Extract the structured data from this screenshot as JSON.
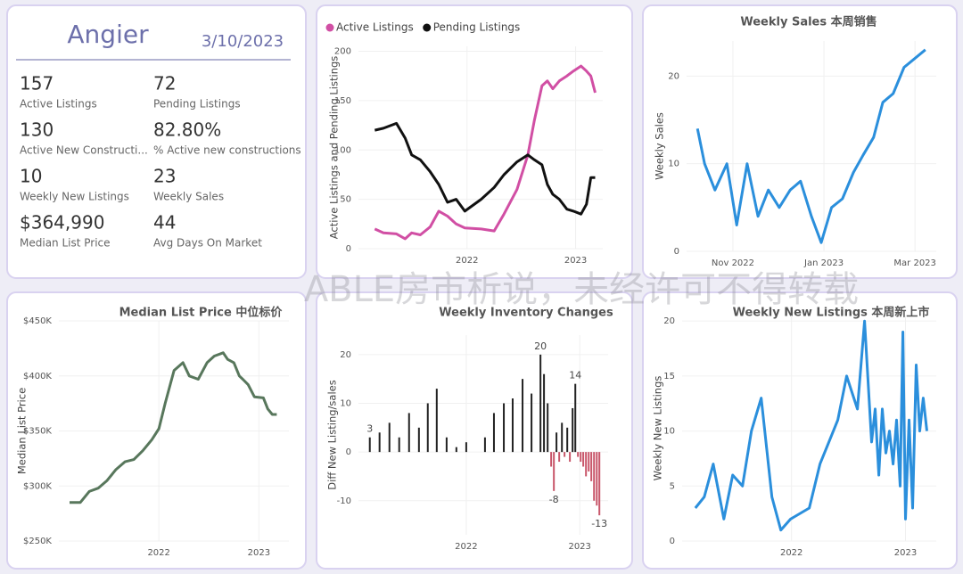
{
  "kpi_card": {
    "title": "Angier",
    "date": "3/10/2023",
    "items": [
      {
        "value": "157",
        "label": "Active Listings"
      },
      {
        "value": "72",
        "label": "Pending Listings"
      },
      {
        "value": "130",
        "label": "Active New Constructi..."
      },
      {
        "value": "82.80%",
        "label": "% Active new constructions"
      },
      {
        "value": "10",
        "label": "Weekly New Listings"
      },
      {
        "value": "23",
        "label": "Weekly Sales"
      },
      {
        "value": "$364,990",
        "label": "Median List Price"
      },
      {
        "value": "44",
        "label": "Avg Days On Market"
      }
    ]
  },
  "watermark": "ABLE房市析说，未经许可不得转载",
  "chart_data": [
    {
      "type": "line",
      "ylabel": "Active Listings and Pending Listings",
      "legend": "top-left",
      "grid": true,
      "x": [
        2021.15,
        2021.23,
        2021.35,
        2021.43,
        2021.49,
        2021.57,
        2021.66,
        2021.74,
        2021.82,
        2021.9,
        2021.98,
        2022.13,
        2022.25,
        2022.34,
        2022.46,
        2022.56,
        2022.62,
        2022.69,
        2022.74,
        2022.79,
        2022.85,
        2022.92,
        2022.98,
        2023.05,
        2023.1,
        2023.14,
        2023.18
      ],
      "series": [
        {
          "name": "Active Listings",
          "color": "#d14fa4",
          "values": [
            20,
            16,
            15,
            10,
            16,
            14,
            22,
            38,
            33,
            25,
            21,
            20,
            18,
            35,
            60,
            95,
            130,
            165,
            170,
            162,
            170,
            175,
            180,
            185,
            180,
            175,
            158
          ]
        },
        {
          "name": "Pending Listings",
          "color": "#111111",
          "values": [
            120,
            122,
            127,
            112,
            95,
            90,
            78,
            65,
            47,
            50,
            38,
            50,
            62,
            75,
            88,
            95,
            90,
            85,
            65,
            55,
            50,
            40,
            38,
            35,
            45,
            72,
            72
          ]
        }
      ],
      "xlim": [
        2021.0,
        2023.25
      ],
      "xticks": [
        2022,
        2023
      ],
      "ylim": [
        0,
        205
      ],
      "yticks": [
        0,
        50,
        100,
        150,
        200
      ]
    },
    {
      "type": "line",
      "title": "Weekly Sales 本周销售",
      "ylabel": "Weekly Sales",
      "grid": true,
      "x": [
        2022.768,
        2022.781,
        2022.8,
        2022.822,
        2022.84,
        2022.859,
        2022.879,
        2022.898,
        2022.918,
        2022.938,
        2022.957,
        2022.977,
        2022.995,
        2023.014,
        2023.034,
        2023.054,
        2023.072,
        2023.091,
        2023.108,
        2023.127,
        2023.147,
        2023.186
      ],
      "series": [
        {
          "name": "Weekly Sales",
          "color": "#2b8fdc",
          "values": [
            14,
            10,
            7,
            10,
            3,
            10,
            4,
            7,
            5,
            7,
            8,
            4,
            1,
            5,
            6,
            9,
            11,
            13,
            17,
            18,
            21,
            23
          ]
        }
      ],
      "xlim": [
        2022.748,
        2023.206
      ],
      "xticks": [
        {
          "value": 2022.833,
          "label": "Nov 2022"
        },
        {
          "value": 2023.0,
          "label": "Jan 2023"
        },
        {
          "value": 2023.167,
          "label": "Mar 2023"
        }
      ],
      "ylim": [
        0,
        24
      ],
      "yticks": [
        0,
        10,
        20
      ]
    },
    {
      "type": "line",
      "title": "Median List Price  中位标价",
      "ylabel": "Median List Price",
      "grid": true,
      "x": [
        2021.107,
        2021.214,
        2021.304,
        2021.393,
        2021.482,
        2021.571,
        2021.661,
        2021.75,
        2021.839,
        2021.929,
        2022.0,
        2022.063,
        2022.152,
        2022.241,
        2022.304,
        2022.393,
        2022.482,
        2022.554,
        2022.643,
        2022.688,
        2022.75,
        2022.804,
        2022.839,
        2022.893,
        2022.955,
        2023.045,
        2023.089,
        2023.134,
        2023.179
      ],
      "series": [
        {
          "name": "Median List Price",
          "color": "#58775c",
          "values": [
            285000,
            285000,
            295000,
            298000,
            305000,
            315000,
            322000,
            324000,
            332000,
            342000,
            352000,
            375000,
            405000,
            412000,
            400000,
            397000,
            412000,
            418000,
            421000,
            415000,
            412000,
            400000,
            397000,
            392000,
            381000,
            380000,
            370000,
            365000,
            365000
          ]
        }
      ],
      "xlim": [
        2021.0,
        2023.3
      ],
      "xticks": [
        2022,
        2023
      ],
      "ylim": [
        250000,
        450000
      ],
      "yticks": [
        {
          "value": 250000,
          "label": "$250K"
        },
        {
          "value": 300000,
          "label": "$300K"
        },
        {
          "value": 350000,
          "label": "$350K"
        },
        {
          "value": 400000,
          "label": "$400K"
        },
        {
          "value": 450000,
          "label": "$450K"
        }
      ]
    },
    {
      "type": "bar",
      "title": "Weekly Inventory Changes",
      "ylabel": "Diff New Listing/sales",
      "color": "#222222",
      "negative_color": "#c8566a",
      "grid": true,
      "x": [
        2021.15,
        2021.236,
        2021.323,
        2021.409,
        2021.496,
        2021.583,
        2021.661,
        2021.74,
        2021.827,
        2021.913,
        2022.0,
        2022.165,
        2022.244,
        2022.331,
        2022.409,
        2022.496,
        2022.575,
        2022.654,
        2022.685,
        2022.717,
        2022.748,
        2022.772,
        2022.795,
        2022.819,
        2022.843,
        2022.866,
        2022.89,
        2022.913,
        2022.937,
        2022.961,
        2022.984,
        2023.008,
        2023.031,
        2023.055,
        2023.079,
        2023.102,
        2023.126,
        2023.15,
        2023.173
      ],
      "values": [
        3,
        4,
        6,
        3,
        8,
        5,
        10,
        13,
        3,
        1,
        2,
        3,
        8,
        10,
        11,
        15,
        12,
        20,
        16,
        10,
        -3,
        -8,
        4,
        -2,
        6,
        -1,
        5,
        -2,
        9,
        14,
        -1,
        -2,
        -3,
        -5,
        -4,
        -6,
        -10,
        -11,
        -13
      ],
      "value_labels": [
        "3",
        null,
        null,
        null,
        null,
        null,
        null,
        null,
        null,
        null,
        null,
        null,
        null,
        null,
        null,
        null,
        null,
        "20",
        null,
        null,
        null,
        "-8",
        null,
        null,
        null,
        null,
        null,
        null,
        null,
        "14",
        null,
        null,
        null,
        null,
        null,
        null,
        null,
        null,
        "-13"
      ],
      "xlim": [
        2021.05,
        2023.25
      ],
      "xticks": [
        2022,
        2023
      ],
      "ylim": [
        -17,
        24
      ],
      "yticks": [
        -10,
        0,
        10,
        20
      ]
    },
    {
      "type": "line",
      "title": "Weekly New Listings  本周新上市",
      "ylabel": "Weekly New Listings",
      "grid": true,
      "x": [
        2021.156,
        2021.234,
        2021.313,
        2021.406,
        2021.484,
        2021.57,
        2021.648,
        2021.734,
        2021.828,
        2021.906,
        2021.992,
        2022.156,
        2022.25,
        2022.328,
        2022.406,
        2022.484,
        2022.578,
        2022.641,
        2022.703,
        2022.734,
        2022.766,
        2022.797,
        2022.828,
        2022.859,
        2022.891,
        2022.922,
        2022.953,
        2022.977,
        2023.0,
        2023.031,
        2023.063,
        2023.094,
        2023.125,
        2023.156,
        2023.188
      ],
      "series": [
        {
          "name": "Weekly New Listings",
          "color": "#2b8fdc",
          "values": [
            3,
            4,
            7,
            2,
            6,
            5,
            10,
            13,
            4,
            1,
            2,
            3,
            7,
            9,
            11,
            15,
            12,
            20,
            9,
            12,
            6,
            12,
            8,
            10,
            7,
            11,
            5,
            19,
            2,
            11,
            3,
            16,
            10,
            13,
            10
          ]
        }
      ],
      "xlim": [
        2021.04,
        2023.27
      ],
      "xticks": [
        2022,
        2023
      ],
      "ylim": [
        0,
        20.5
      ],
      "yticks": [
        0,
        5,
        10,
        15,
        20
      ]
    }
  ]
}
